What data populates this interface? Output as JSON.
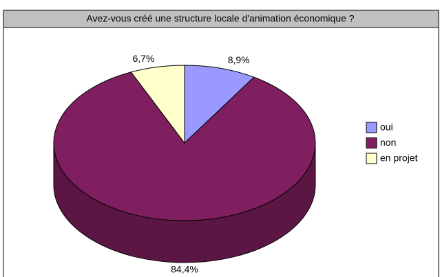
{
  "chart_data": {
    "type": "pie",
    "title": "Avez-vous créé une structure locale d'animation économique ?",
    "categories": [
      "oui",
      "non",
      "en projet"
    ],
    "values": [
      8.9,
      84.4,
      6.7
    ],
    "value_labels": [
      "8,9%",
      "84,4%",
      "6,7%"
    ],
    "colors": [
      "#9999ff",
      "#7f1f5f",
      "#ffffcc"
    ],
    "legend": "right"
  }
}
